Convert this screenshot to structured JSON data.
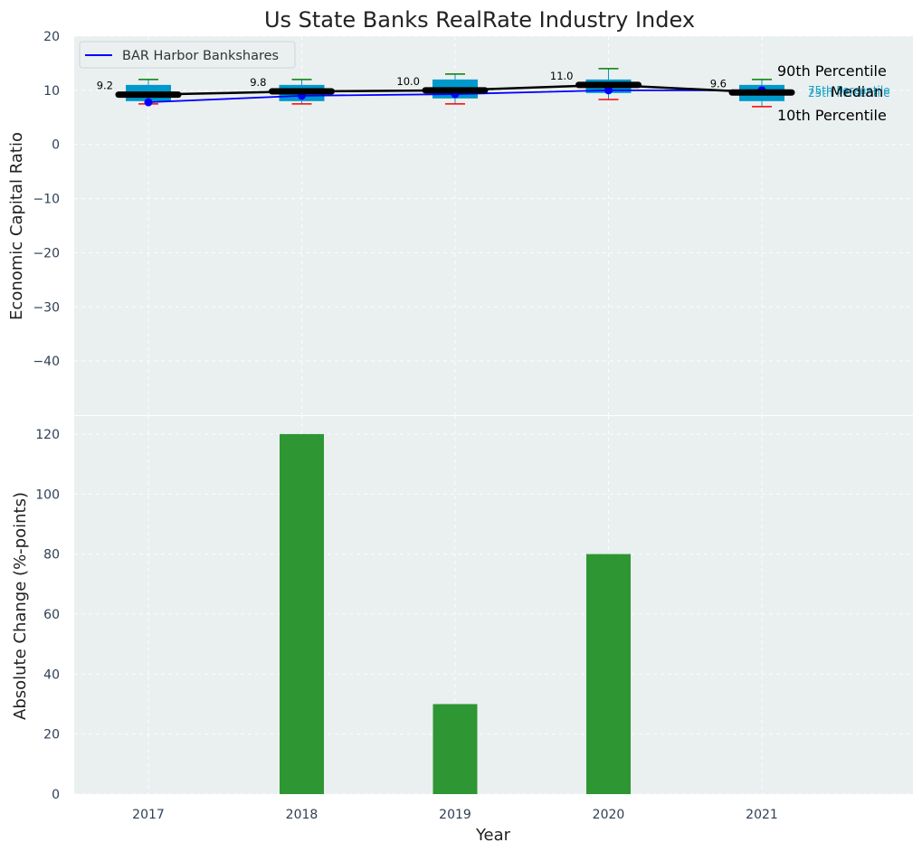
{
  "chart_data": {
    "title": "Us State Banks RealRate Industry Index",
    "xlabel": "Year",
    "categories": [
      "2017",
      "2018",
      "2019",
      "2020",
      "2021"
    ],
    "colors": {
      "box": "#0099cc",
      "median": "#000000",
      "company": "#0000ff",
      "whisker_high": "#008000",
      "whisker_low": "#ff0000",
      "bar": "#2e9632",
      "background": "#eaeff0",
      "quartile_label": "#17a2c6"
    },
    "top": {
      "type": "box",
      "ylabel": "Economic Capital Ratio",
      "ylim": [
        -50,
        20
      ],
      "yticks": [
        20,
        10,
        0,
        -10,
        -20,
        -30,
        -40
      ],
      "tick_labels": [
        "20",
        "10",
        "0",
        "−10",
        "−20",
        "−30",
        "−40"
      ],
      "p90": [
        12,
        12,
        13,
        14,
        12
      ],
      "p75": [
        11,
        11,
        12,
        12,
        11
      ],
      "median": [
        9.2,
        9.8,
        10.0,
        11.0,
        9.6
      ],
      "median_labels": [
        "9.2",
        "9.8",
        "10.0",
        "11.0",
        "9.6"
      ],
      "p25": [
        8,
        8,
        8.5,
        9.5,
        8
      ],
      "p10": [
        7.5,
        7.5,
        7.5,
        8.3,
        7
      ],
      "company_name": "BAR Harbor Bankshares",
      "company_values": [
        7.8,
        9,
        9.3,
        10,
        10
      ],
      "legend": {
        "label": "BAR Harbor Bankshares",
        "position": "upper-left"
      },
      "annotations": {
        "p90": "90th Percentile",
        "median": "Median",
        "p10": "10th Percentile",
        "p75": "75th Percentile",
        "p25": "25th Percentile"
      }
    },
    "bottom": {
      "type": "bar",
      "ylabel": "Absolute Change (%-points)",
      "ylim": [
        0,
        126
      ],
      "yticks": [
        0,
        20,
        40,
        60,
        80,
        100,
        120
      ],
      "values": [
        0,
        120,
        30,
        80,
        0
      ]
    }
  }
}
